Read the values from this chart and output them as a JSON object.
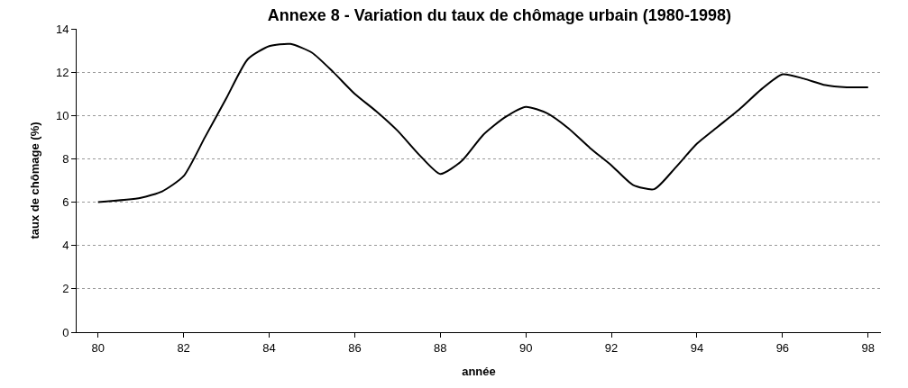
{
  "chart_data": {
    "type": "line",
    "title": "Annexe 8 - Variation du taux de chômage urbain (1980-1998)",
    "xlabel": "année",
    "ylabel": "taux de chômage (%)",
    "x": [
      80,
      81,
      81.5,
      82,
      82.5,
      83,
      83.5,
      84,
      84.5,
      85,
      85.5,
      86,
      86.5,
      87,
      87.5,
      88,
      88.5,
      89,
      89.5,
      90,
      90.5,
      91,
      91.5,
      92,
      92.5,
      93,
      93.5,
      94,
      94.5,
      95,
      95.5,
      96,
      96.5,
      97,
      97.5,
      98
    ],
    "series": [
      {
        "color": "#000000",
        "values": [
          6.0,
          6.2,
          6.5,
          7.2,
          9.0,
          10.8,
          12.6,
          13.2,
          13.3,
          12.9,
          12.0,
          11.0,
          10.2,
          9.3,
          8.2,
          7.3,
          7.9,
          9.1,
          9.9,
          10.4,
          10.1,
          9.4,
          8.5,
          7.7,
          6.8,
          6.6,
          7.6,
          8.7,
          9.5,
          10.3,
          11.2,
          11.9,
          11.7,
          11.4,
          11.3,
          11.3
        ]
      }
    ],
    "xlim": [
      79.5,
      98.3
    ],
    "xticks": [
      80,
      82,
      84,
      86,
      88,
      90,
      92,
      94,
      96,
      98
    ],
    "ylim": [
      0,
      14
    ],
    "yticks": [
      0,
      2,
      4,
      6,
      8,
      10,
      12,
      14
    ],
    "grid": "y",
    "legend": false,
    "marker": "none",
    "line_style": "solid"
  }
}
